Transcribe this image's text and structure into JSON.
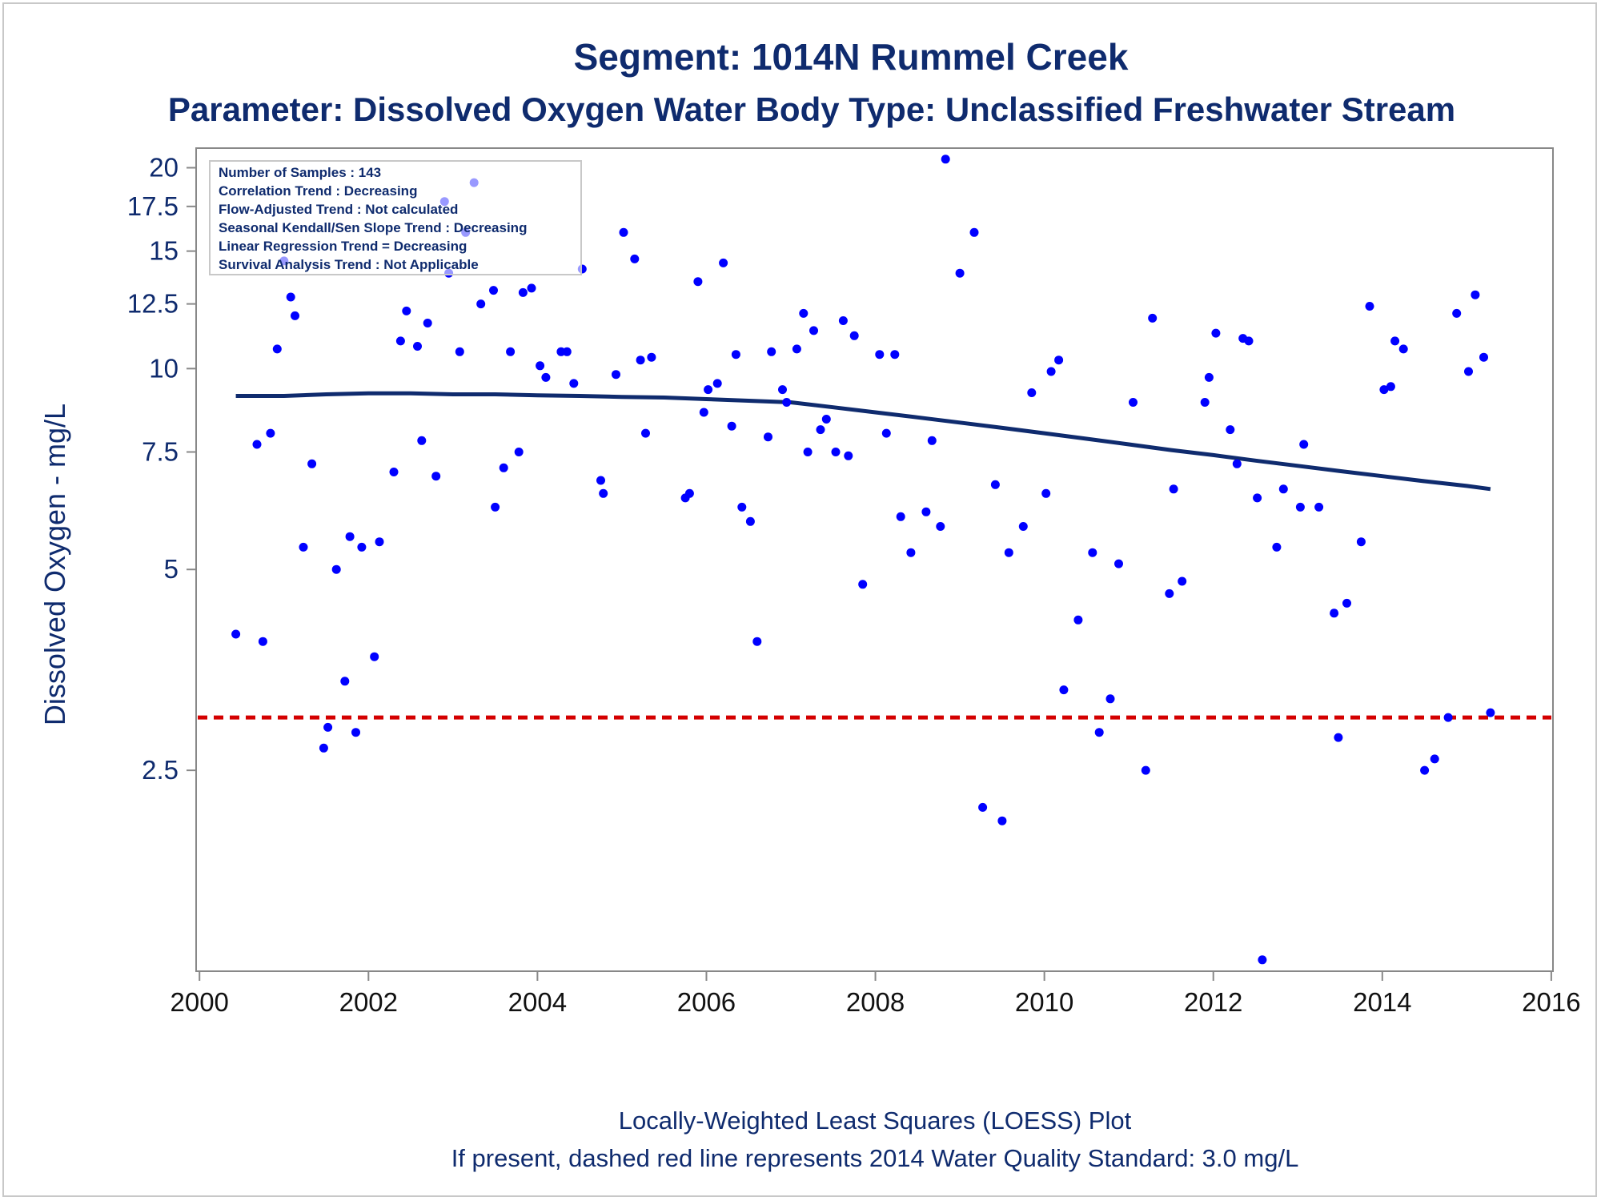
{
  "chart_data": {
    "type": "scatter",
    "title": "Segment: 1014N  Rummel Creek",
    "subtitle": "Parameter: Dissolved Oxygen   Water Body Type: Unclassified Freshwater Stream",
    "xlabel": "",
    "ylabel": "Dissolved Oxygen - mg/L",
    "footnote1": "Locally-Weighted Least Squares (LOESS) Plot",
    "footnote2": "If present, dashed red line represents 2014 Water Quality Standard: 3.0 mg/L",
    "x_scale": "linear",
    "y_scale": "log",
    "xlim": [
      1999.96,
      2016.02
    ],
    "ylim": [
      1.25,
      21.4
    ],
    "x_ticks": [
      {
        "value": 2000,
        "label": "2000"
      },
      {
        "value": 2002,
        "label": "2002"
      },
      {
        "value": 2004,
        "label": "2004"
      },
      {
        "value": 2006,
        "label": "2006"
      },
      {
        "value": 2008,
        "label": "2008"
      },
      {
        "value": 2010,
        "label": "2010"
      },
      {
        "value": 2012,
        "label": "2012"
      },
      {
        "value": 2014,
        "label": "2014"
      },
      {
        "value": 2016,
        "label": "2016"
      }
    ],
    "y_ticks": [
      {
        "value": 2.5,
        "label": "2.5"
      },
      {
        "value": 5,
        "label": "5"
      },
      {
        "value": 7.5,
        "label": "7.5"
      },
      {
        "value": 10,
        "label": "10"
      },
      {
        "value": 12.5,
        "label": "12.5"
      },
      {
        "value": 15,
        "label": "15"
      },
      {
        "value": 17.5,
        "label": "17.5"
      },
      {
        "value": 20,
        "label": "20"
      }
    ],
    "grid": false,
    "legend": "none",
    "inset_box_position": "top-left",
    "inset_box_lines": [
      "Number of Samples : 143",
      "Correlation Trend : Decreasing",
      "Flow-Adjusted Trend : Not calculated",
      "Seasonal Kendall/Sen Slope Trend : Decreasing",
      "Linear Regression Trend = Decreasing",
      "Survival Analysis Trend : Not Applicable"
    ],
    "colors": {
      "text": "#0f2b6e",
      "points": "#0000ff",
      "loess": "#0f2b6e",
      "standard": "#d40000",
      "axis": "#888888"
    },
    "standard_line": {
      "y": 3.0
    },
    "points": [
      [
        2000.43,
        4.0
      ],
      [
        2000.68,
        7.7
      ],
      [
        2000.75,
        3.9
      ],
      [
        2000.84,
        8.0
      ],
      [
        2000.92,
        10.7
      ],
      [
        2001.0,
        14.5
      ],
      [
        2001.08,
        12.8
      ],
      [
        2001.13,
        12.0
      ],
      [
        2001.23,
        5.4
      ],
      [
        2001.33,
        7.2
      ],
      [
        2001.47,
        2.7
      ],
      [
        2001.52,
        2.9
      ],
      [
        2001.62,
        5.0
      ],
      [
        2001.72,
        3.4
      ],
      [
        2001.78,
        5.6
      ],
      [
        2001.85,
        2.85
      ],
      [
        2001.92,
        5.4
      ],
      [
        2002.07,
        3.7
      ],
      [
        2002.13,
        5.5
      ],
      [
        2002.3,
        7.0
      ],
      [
        2002.38,
        11.0
      ],
      [
        2002.45,
        12.2
      ],
      [
        2002.58,
        10.8
      ],
      [
        2002.63,
        7.8
      ],
      [
        2002.7,
        11.7
      ],
      [
        2002.8,
        6.9
      ],
      [
        2002.9,
        17.8
      ],
      [
        2002.95,
        13.9
      ],
      [
        2003.08,
        10.6
      ],
      [
        2003.15,
        16.0
      ],
      [
        2003.25,
        19.0
      ],
      [
        2003.33,
        12.5
      ],
      [
        2003.48,
        13.1
      ],
      [
        2003.5,
        6.2
      ],
      [
        2003.6,
        7.1
      ],
      [
        2003.68,
        10.6
      ],
      [
        2003.78,
        7.5
      ],
      [
        2003.83,
        13.0
      ],
      [
        2003.93,
        13.2
      ],
      [
        2004.03,
        10.1
      ],
      [
        2004.1,
        9.7
      ],
      [
        2004.28,
        10.6
      ],
      [
        2004.35,
        10.6
      ],
      [
        2004.43,
        9.5
      ],
      [
        2004.53,
        14.1
      ],
      [
        2004.75,
        6.8
      ],
      [
        2004.78,
        6.5
      ],
      [
        2004.93,
        9.8
      ],
      [
        2005.02,
        16.0
      ],
      [
        2005.15,
        14.6
      ],
      [
        2005.22,
        10.3
      ],
      [
        2005.28,
        8.0
      ],
      [
        2005.35,
        10.4
      ],
      [
        2005.75,
        6.4
      ],
      [
        2005.8,
        6.5
      ],
      [
        2005.9,
        13.5
      ],
      [
        2005.97,
        8.6
      ],
      [
        2006.02,
        9.3
      ],
      [
        2006.13,
        9.5
      ],
      [
        2006.2,
        14.4
      ],
      [
        2006.3,
        8.2
      ],
      [
        2006.35,
        10.5
      ],
      [
        2006.42,
        6.2
      ],
      [
        2006.52,
        5.9
      ],
      [
        2006.6,
        3.9
      ],
      [
        2006.73,
        7.9
      ],
      [
        2006.77,
        10.6
      ],
      [
        2006.9,
        9.3
      ],
      [
        2006.95,
        8.9
      ],
      [
        2007.07,
        10.7
      ],
      [
        2007.15,
        12.1
      ],
      [
        2007.2,
        7.5
      ],
      [
        2007.27,
        11.4
      ],
      [
        2007.35,
        8.1
      ],
      [
        2007.42,
        8.4
      ],
      [
        2007.53,
        7.5
      ],
      [
        2007.62,
        11.8
      ],
      [
        2007.68,
        7.4
      ],
      [
        2007.75,
        11.2
      ],
      [
        2007.85,
        4.75
      ],
      [
        2008.05,
        10.5
      ],
      [
        2008.13,
        8.0
      ],
      [
        2008.23,
        10.5
      ],
      [
        2008.3,
        6.0
      ],
      [
        2008.42,
        5.3
      ],
      [
        2008.6,
        6.1
      ],
      [
        2008.67,
        7.8
      ],
      [
        2008.77,
        5.8
      ],
      [
        2008.83,
        20.6
      ],
      [
        2009.0,
        13.9
      ],
      [
        2009.17,
        16.0
      ],
      [
        2009.27,
        2.2
      ],
      [
        2009.42,
        6.7
      ],
      [
        2009.5,
        2.1
      ],
      [
        2009.58,
        5.3
      ],
      [
        2009.75,
        5.8
      ],
      [
        2009.85,
        9.2
      ],
      [
        2010.02,
        6.5
      ],
      [
        2010.08,
        9.9
      ],
      [
        2010.17,
        10.3
      ],
      [
        2010.23,
        3.3
      ],
      [
        2010.4,
        4.2
      ],
      [
        2010.57,
        5.3
      ],
      [
        2010.65,
        2.85
      ],
      [
        2010.78,
        3.2
      ],
      [
        2010.88,
        5.1
      ],
      [
        2011.05,
        8.9
      ],
      [
        2011.2,
        2.5
      ],
      [
        2011.28,
        11.9
      ],
      [
        2011.48,
        4.6
      ],
      [
        2011.53,
        6.6
      ],
      [
        2011.63,
        4.8
      ],
      [
        2011.9,
        8.9
      ],
      [
        2011.95,
        9.7
      ],
      [
        2012.03,
        11.3
      ],
      [
        2012.2,
        8.1
      ],
      [
        2012.28,
        7.2
      ],
      [
        2012.35,
        11.1
      ],
      [
        2012.42,
        11.0
      ],
      [
        2012.52,
        6.4
      ],
      [
        2012.58,
        1.3
      ],
      [
        2012.75,
        5.4
      ],
      [
        2012.83,
        6.6
      ],
      [
        2013.03,
        6.2
      ],
      [
        2013.07,
        7.7
      ],
      [
        2013.25,
        6.2
      ],
      [
        2013.43,
        4.3
      ],
      [
        2013.48,
        2.8
      ],
      [
        2013.58,
        4.45
      ],
      [
        2013.75,
        5.5
      ],
      [
        2013.85,
        12.4
      ],
      [
        2014.02,
        9.3
      ],
      [
        2014.1,
        9.4
      ],
      [
        2014.15,
        11.0
      ],
      [
        2014.25,
        10.7
      ],
      [
        2014.5,
        2.5
      ],
      [
        2014.62,
        2.6
      ],
      [
        2014.78,
        3.0
      ],
      [
        2014.88,
        12.1
      ],
      [
        2015.02,
        9.9
      ],
      [
        2015.1,
        12.9
      ],
      [
        2015.2,
        10.4
      ],
      [
        2015.28,
        3.05
      ]
    ],
    "loess_line": [
      [
        2000.43,
        9.1
      ],
      [
        2001.0,
        9.1
      ],
      [
        2001.5,
        9.15
      ],
      [
        2002.0,
        9.18
      ],
      [
        2002.5,
        9.18
      ],
      [
        2003.0,
        9.15
      ],
      [
        2003.5,
        9.15
      ],
      [
        2004.0,
        9.12
      ],
      [
        2004.5,
        9.1
      ],
      [
        2005.0,
        9.07
      ],
      [
        2005.5,
        9.05
      ],
      [
        2006.0,
        9.0
      ],
      [
        2006.5,
        8.95
      ],
      [
        2007.0,
        8.9
      ],
      [
        2007.5,
        8.75
      ],
      [
        2008.0,
        8.6
      ],
      [
        2008.5,
        8.45
      ],
      [
        2009.0,
        8.3
      ],
      [
        2009.5,
        8.15
      ],
      [
        2010.0,
        8.0
      ],
      [
        2010.5,
        7.85
      ],
      [
        2011.0,
        7.7
      ],
      [
        2011.5,
        7.55
      ],
      [
        2012.0,
        7.42
      ],
      [
        2012.5,
        7.28
      ],
      [
        2013.0,
        7.15
      ],
      [
        2013.5,
        7.02
      ],
      [
        2014.0,
        6.9
      ],
      [
        2014.5,
        6.78
      ],
      [
        2015.0,
        6.67
      ],
      [
        2015.28,
        6.6
      ]
    ]
  }
}
